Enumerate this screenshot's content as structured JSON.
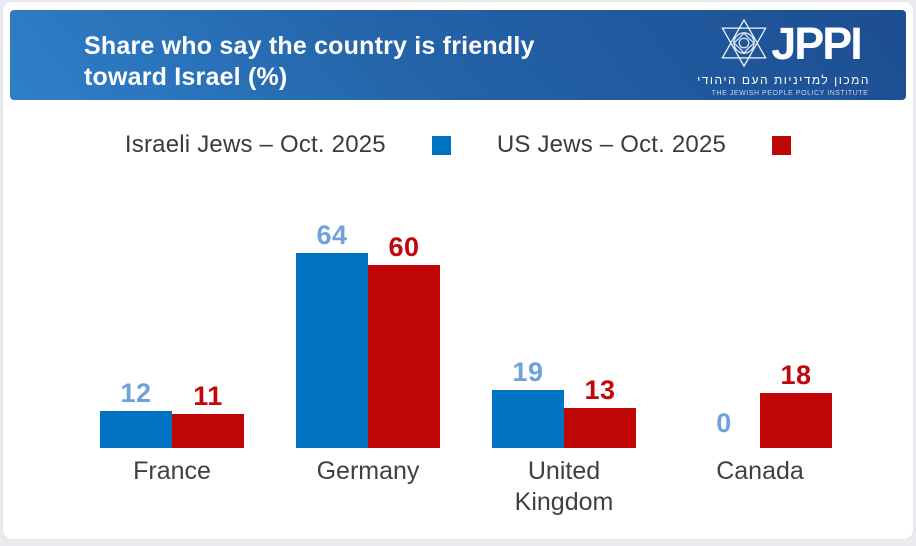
{
  "header": {
    "title_line1": "Share who say the country is friendly",
    "title_line2": "toward Israel (%)"
  },
  "logo": {
    "acronym": "JPPI",
    "hebrew": "המכון למדיניות העם היהודי",
    "subtitle": "THE JEWISH PEOPLE POLICY INSTITUTE",
    "icon": "star-of-david-icon"
  },
  "legend": {
    "items": [
      {
        "label": "Israeli Jews – Oct. 2025",
        "color": "#0072c2"
      },
      {
        "label": "US Jews – Oct. 2025",
        "color": "#c00505"
      }
    ]
  },
  "chart_data": {
    "type": "bar",
    "title": "Share who say the country is friendly toward Israel (%)",
    "unit": "%",
    "categories": [
      "France",
      "Germany",
      "United Kingdom",
      "Canada"
    ],
    "series": [
      {
        "name": "Israeli Jews – Oct. 2025",
        "values": [
          12,
          64,
          19,
          0
        ],
        "bar_color": "#0072c2",
        "label_color": "#6fa2da"
      },
      {
        "name": "US Jews – Oct. 2025",
        "values": [
          11,
          60,
          13,
          18
        ],
        "bar_color": "#c00505",
        "label_color": "#bf070c"
      }
    ],
    "value_labels": true,
    "axes_visible": false,
    "grid": false,
    "ylim": [
      0,
      80
    ],
    "legend_position": "top"
  },
  "colors": {
    "header_gradient_start": "#2f80c9",
    "header_gradient_end": "#1d4d92",
    "page_background": "#e9ebee",
    "card_background": "#ffffff",
    "title_text": "#ffffff",
    "legend_text": "#3a3a40",
    "category_text": "#3f4046"
  }
}
